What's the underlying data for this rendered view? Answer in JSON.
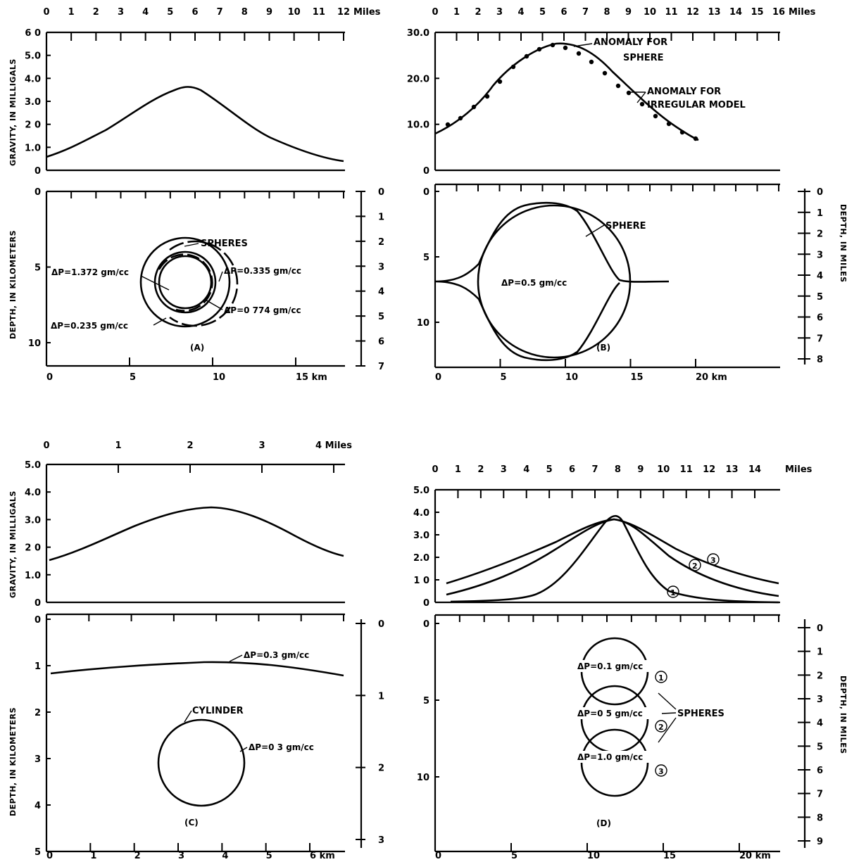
{
  "panel_a": {
    "caption": "(A)",
    "miles_ticks": [
      "0",
      "1",
      "2",
      "3",
      "4",
      "5",
      "6",
      "7",
      "8",
      "9",
      "10",
      "11",
      "12"
    ],
    "miles_unit": "Miles",
    "gravity_ticks": [
      "6 0",
      "5.0",
      "4.0",
      "3.0",
      "2 0",
      "1.0",
      "0"
    ],
    "gravity_axis_label": "GRAVITY, IN MILLIGALS",
    "depth_km_ticks": [
      "0",
      "5",
      "10"
    ],
    "depth_mi_ticks": [
      "0",
      "1",
      "2",
      "3",
      "4",
      "5",
      "6",
      "7"
    ],
    "km_ticks": [
      "0",
      "5",
      "10",
      "15 km"
    ],
    "depth_axis_label": "DEPTH, IN KILOMETERS",
    "spheres_label": "SPHERES",
    "rho_1": "ΔP=1.372 gm/cc",
    "rho_2": "ΔP=0.335 gm/cc",
    "rho_3": "ΔP=0 774 gm/cc",
    "rho_4": "ΔP=0.235 gm/cc"
  },
  "panel_b": {
    "caption": "(B)",
    "miles_ticks": [
      "0",
      "1",
      "2",
      "3",
      "4",
      "5",
      "6",
      "7",
      "8",
      "9",
      "10",
      "11",
      "12",
      "13",
      "14",
      "15",
      "16"
    ],
    "miles_unit": "Miles",
    "gravity_ticks": [
      "30.0",
      "20.0",
      "10.0",
      "0"
    ],
    "sphere_anomaly_label_1": "ANOMALY FOR",
    "sphere_anomaly_label_2": "SPHERE",
    "irregular_label_1": "ANOMALY FOR",
    "irregular_label_2": "IRREGULAR MODEL",
    "depth_km_ticks": [
      "0",
      "5",
      "10"
    ],
    "depth_mi_ticks": [
      "0",
      "1",
      "2",
      "3",
      "4",
      "5",
      "6",
      "7",
      "8"
    ],
    "km_ticks": [
      "0",
      "5",
      "10",
      "15",
      "20 km"
    ],
    "depth_axis_label": "DEPTH, IN MILES",
    "sphere_label": "SPHERE",
    "rho": "ΔP=0.5 gm/cc"
  },
  "panel_c": {
    "caption": "(C)",
    "miles_ticks": [
      "0",
      "1",
      "2",
      "3",
      "4 Miles"
    ],
    "gravity_ticks": [
      "5.0",
      "4.0",
      "3.0",
      "2 0",
      "1.0",
      "0"
    ],
    "gravity_axis_label": "GRAVITY, IN MILLIGALS",
    "depth_km_ticks": [
      "0",
      "1",
      "2",
      "3",
      "4",
      "5"
    ],
    "depth_mi_ticks": [
      "0",
      "1",
      "2",
      "3"
    ],
    "km_ticks": [
      "0",
      "1",
      "2",
      "3",
      "4",
      "5",
      "6 km"
    ],
    "depth_axis_label": "DEPTH, IN KILOMETERS",
    "layer_rho": "ΔP=0.3 gm/cc",
    "cylinder_label": "CYLINDER",
    "cylinder_rho": "ΔP=0 3 gm/cc"
  },
  "panel_d": {
    "caption": "(D)",
    "miles_ticks": [
      "0",
      "1",
      "2",
      "3",
      "4",
      "5",
      "6",
      "7",
      "8",
      "9",
      "10",
      "11",
      "12",
      "13",
      "14"
    ],
    "miles_unit": "Miles",
    "gravity_ticks": [
      "5.0",
      "4.0",
      "3.0",
      "2.0",
      "1 0",
      "0"
    ],
    "depth_km_ticks": [
      "0",
      "5",
      "10"
    ],
    "depth_mi_ticks": [
      "0",
      "1",
      "2",
      "3",
      "4",
      "5",
      "6",
      "7",
      "8",
      "9"
    ],
    "km_ticks": [
      "0",
      "5",
      "10",
      "15",
      "20 km"
    ],
    "depth_axis_label": "DEPTH, IN MILES",
    "rho_1": "ΔP=0.1 gm/cc",
    "rho_2": "ΔP=0 5 gm/cc",
    "rho_3": "ΔP=1.0 gm/cc",
    "spheres_label": "SPHERES",
    "curve_ids": [
      "1",
      "2",
      "3"
    ]
  }
}
